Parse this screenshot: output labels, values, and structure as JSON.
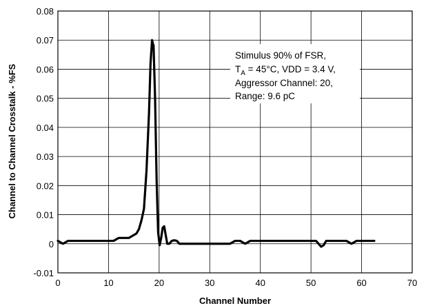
{
  "chart_data": {
    "type": "line",
    "xlabel": "Channel Number",
    "ylabel": "Channel to Channel Crosstalk - %FS",
    "xlim": [
      0,
      70
    ],
    "ylim": [
      -0.01,
      0.08
    ],
    "x_ticks": [
      "0",
      "10",
      "20",
      "30",
      "40",
      "50",
      "60",
      "70"
    ],
    "y_ticks": [
      "-0.01",
      "0",
      "0.01",
      "0.02",
      "0.03",
      "0.04",
      "0.05",
      "0.06",
      "0.07",
      "0.08"
    ],
    "grid": true,
    "annotation": {
      "line1": "Stimulus 90% of FSR,",
      "line2_pre": "T",
      "line2_sub": "A",
      "line2_post": " = 45°C, VDD = 3.4 V,",
      "line3": "Aggressor Channel: 20,",
      "line4": "Range: 9.6 pC"
    },
    "series": [
      {
        "x": [
          0,
          1,
          2,
          4,
          6,
          8,
          10,
          11,
          12,
          13,
          14,
          15,
          15.5,
          16,
          16.5,
          17,
          17.5,
          18,
          18.3,
          18.6,
          18.9,
          19.2,
          19.5,
          19.8,
          20.1,
          20.4,
          20.7,
          21,
          21.3,
          21.6,
          22,
          22.5,
          23,
          23.5,
          24,
          24.5,
          25,
          27,
          30,
          33,
          34,
          35,
          36,
          37,
          38,
          40,
          45,
          50,
          51,
          52,
          52.5,
          53,
          55,
          57,
          58,
          59,
          60,
          62.5
        ],
        "y": [
          0.001,
          0,
          0.001,
          0.001,
          0.001,
          0.001,
          0.001,
          0.001,
          0.002,
          0.002,
          0.002,
          0.003,
          0.0035,
          0.005,
          0.008,
          0.012,
          0.025,
          0.045,
          0.062,
          0.07,
          0.068,
          0.05,
          0.022,
          0.004,
          -0.0005,
          0.002,
          0.0055,
          0.006,
          0.003,
          0,
          0,
          0.001,
          0.0012,
          0.001,
          0,
          0,
          0,
          0,
          0,
          0,
          0,
          0.001,
          0.001,
          0,
          0.001,
          0.001,
          0.001,
          0.001,
          0.001,
          -0.001,
          -0.0005,
          0.001,
          0.001,
          0.001,
          0,
          0.001,
          0.001,
          0.001
        ]
      }
    ]
  }
}
